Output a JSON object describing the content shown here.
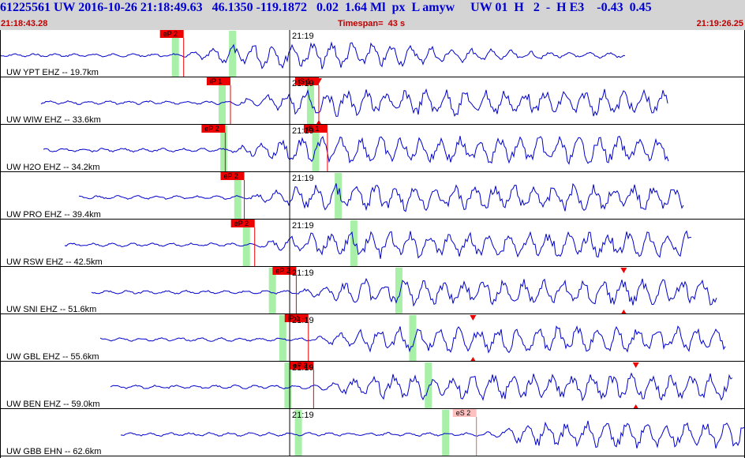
{
  "header": {
    "title": "61225561 UW 2016-10-26 21:18:49.63   46.1350 -119.1872   0.02  1.64 Ml  px  L amyw     UW 01  H   2  -  H E3    -0.43  0.45",
    "start_time": "21:18:43.28",
    "timespan": "Timespan=  43 s",
    "end_time": "21:19:26.25"
  },
  "colors": {
    "trace": "#0000cc",
    "pick": "#ee0000",
    "pick_light": "#ffc0c0",
    "arrival_band": "#a8f0a8",
    "header_bg": "#d4d4d4",
    "header_text": "#0000d0",
    "time_text": "#c00000"
  },
  "chart_data": {
    "type": "line",
    "x_label_unit": "s",
    "time_marker": "21:19",
    "channels": [
      {
        "label": "UW YPT EHZ -- 19.7km",
        "picks": [
          {
            "label": "eP 2",
            "t": 10.6,
            "style": "red"
          }
        ],
        "bands": [
          10.1,
          13.4
        ]
      },
      {
        "label": "UW WIW EHZ -- 33.6km",
        "picks": [
          {
            "label": "iP 1",
            "t": 13.3,
            "style": "red"
          },
          {
            "label": "iS 1",
            "t": 18.4,
            "style": "red"
          }
        ],
        "bands": [
          12.8,
          17.9
        ],
        "triangles": [
          18.4
        ]
      },
      {
        "label": "UW H2O EHZ -- 34.2km",
        "picks": [
          {
            "label": "eP 2",
            "t": 13.0,
            "style": "red"
          },
          {
            "label": "iS 1",
            "t": 18.9,
            "style": "red"
          }
        ],
        "bands": [
          12.9,
          18.2
        ]
      },
      {
        "label": "UW PRO EHZ -- 39.4km",
        "picks": [
          {
            "label": "eP 2",
            "t": 14.1,
            "style": "red"
          }
        ],
        "bands": [
          13.7,
          19.5
        ]
      },
      {
        "label": "UW RSW EHZ -- 42.5km",
        "picks": [
          {
            "label": "eP 2",
            "t": 14.7,
            "style": "red"
          }
        ],
        "bands": [
          14.2,
          20.4
        ]
      },
      {
        "label": "UW SNI EHZ -- 51.6km",
        "picks": [
          {
            "label": "eP 2",
            "t": 17.1,
            "style": "red"
          }
        ],
        "bands": [
          15.7,
          23.0
        ],
        "triangles": [
          36.0
        ]
      },
      {
        "label": "UW GBL EHZ -- 55.6km",
        "picks": [
          {
            "label": "iP 1",
            "t": 17.8,
            "style": "red"
          }
        ],
        "bands": [
          16.3,
          23.8
        ],
        "triangles": [
          27.3
        ]
      },
      {
        "label": "UW BEN EHZ -- 59.0km",
        "picks": [
          {
            "label": "eP 2",
            "t": 18.1,
            "style": "red"
          }
        ],
        "bands": [
          16.6,
          24.7
        ],
        "triangles": [
          36.7
        ]
      },
      {
        "label": "UW GBB EHN -- 62.6km",
        "picks": [
          {
            "label": "eS 2",
            "t": 27.5,
            "style": "light"
          }
        ],
        "bands": [
          17.2,
          25.7
        ]
      }
    ]
  }
}
